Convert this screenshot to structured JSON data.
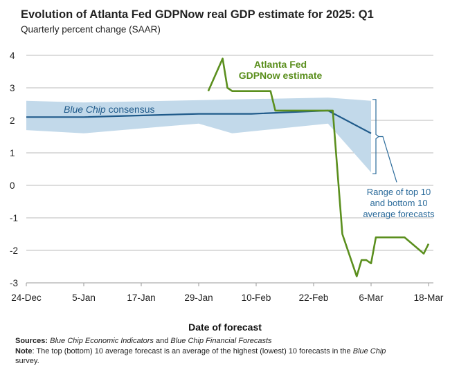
{
  "title": "Evolution of Atlanta Fed GDPNow real GDP estimate for 2025: Q1",
  "subtitle": "Quarterly percent change (SAAR)",
  "footnotes": {
    "sources_label": "Sources:",
    "sources_1": "Blue Chip Economic Indicators",
    "sources_and": " and ",
    "sources_2": "Blue Chip Financial Forecasts",
    "note_label": "Note",
    "note_text": ": The top (bottom) 10 average forecast is an average of the highest (lowest) 10 forecasts in the ",
    "note_italic": "Blue Chip",
    "note_end": "survey."
  },
  "chart_data": {
    "type": "line",
    "xlabel": "Date of forecast",
    "ylabel": "",
    "ylim": [
      -3,
      4
    ],
    "yticks": [
      4,
      3,
      2,
      1,
      0,
      -1,
      -2,
      -3
    ],
    "xlim": [
      "2024-12-24",
      "2025-03-18"
    ],
    "xticks": [
      {
        "date": "2024-12-24",
        "label": "24-Dec"
      },
      {
        "date": "2025-01-05",
        "label": "5-Jan"
      },
      {
        "date": "2025-01-17",
        "label": "17-Jan"
      },
      {
        "date": "2025-01-29",
        "label": "29-Jan"
      },
      {
        "date": "2025-02-10",
        "label": "10-Feb"
      },
      {
        "date": "2025-02-22",
        "label": "22-Feb"
      },
      {
        "date": "2025-03-06",
        "label": "6-Mar"
      },
      {
        "date": "2025-03-18",
        "label": "18-Mar"
      }
    ],
    "grid": "horizontal",
    "colors": {
      "gdpnow": "#5b8f1e",
      "consensus": "#1f5a8a",
      "band": "#c2d9ea",
      "annotation": "#2a6a9a",
      "grid": "#bbbbbb"
    },
    "series": [
      {
        "name": "Atlanta Fed GDPNow estimate",
        "points": [
          [
            "2025-01-31",
            2.9
          ],
          [
            "2025-02-03",
            3.9
          ],
          [
            "2025-02-04",
            3.0
          ],
          [
            "2025-02-05",
            2.9
          ],
          [
            "2025-02-13",
            2.9
          ],
          [
            "2025-02-14",
            2.3
          ],
          [
            "2025-02-26",
            2.3
          ],
          [
            "2025-02-28",
            -1.5
          ],
          [
            "2025-03-03",
            -2.8
          ],
          [
            "2025-03-04",
            -2.3
          ],
          [
            "2025-03-05",
            -2.3
          ],
          [
            "2025-03-06",
            -2.4
          ],
          [
            "2025-03-07",
            -1.6
          ],
          [
            "2025-03-13",
            -1.6
          ],
          [
            "2025-03-17",
            -2.1
          ],
          [
            "2025-03-18",
            -1.8
          ]
        ]
      },
      {
        "name": "Blue Chip consensus",
        "points": [
          [
            "2024-12-24",
            2.1
          ],
          [
            "2025-01-05",
            2.1
          ],
          [
            "2025-01-29",
            2.2
          ],
          [
            "2025-02-09",
            2.2
          ],
          [
            "2025-02-25",
            2.3
          ],
          [
            "2025-03-06",
            1.6
          ]
        ]
      }
    ],
    "band": {
      "name": "Range of top 10 and bottom 10 average forecasts",
      "upper": [
        [
          "2024-12-24",
          2.6
        ],
        [
          "2025-01-05",
          2.55
        ],
        [
          "2025-02-25",
          2.7
        ],
        [
          "2025-03-06",
          2.6
        ]
      ],
      "lower": [
        [
          "2024-12-24",
          1.7
        ],
        [
          "2025-01-05",
          1.6
        ],
        [
          "2025-01-29",
          1.9
        ],
        [
          "2025-02-05",
          1.6
        ],
        [
          "2025-02-25",
          1.9
        ],
        [
          "2025-03-06",
          0.4
        ]
      ]
    },
    "annotations": {
      "gdpnow_1": "Atlanta Fed",
      "gdpnow_2": "GDPNow estimate",
      "consensus_italic": "Blue Chip",
      "consensus_rest": " consensus",
      "range_1": "Range of top 10",
      "range_2": "and bottom 10",
      "range_3": "average forecasts"
    }
  }
}
